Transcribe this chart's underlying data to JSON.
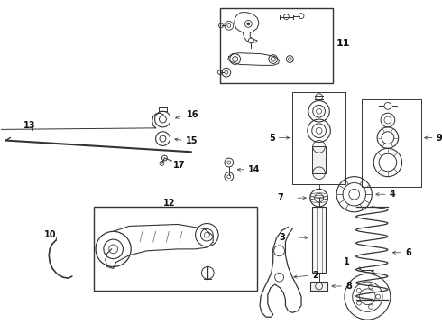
{
  "bg_color": "#ffffff",
  "fig_width": 4.9,
  "fig_height": 3.6,
  "dpi": 100,
  "gray": "#333333",
  "line_color": "#1a1a1a"
}
